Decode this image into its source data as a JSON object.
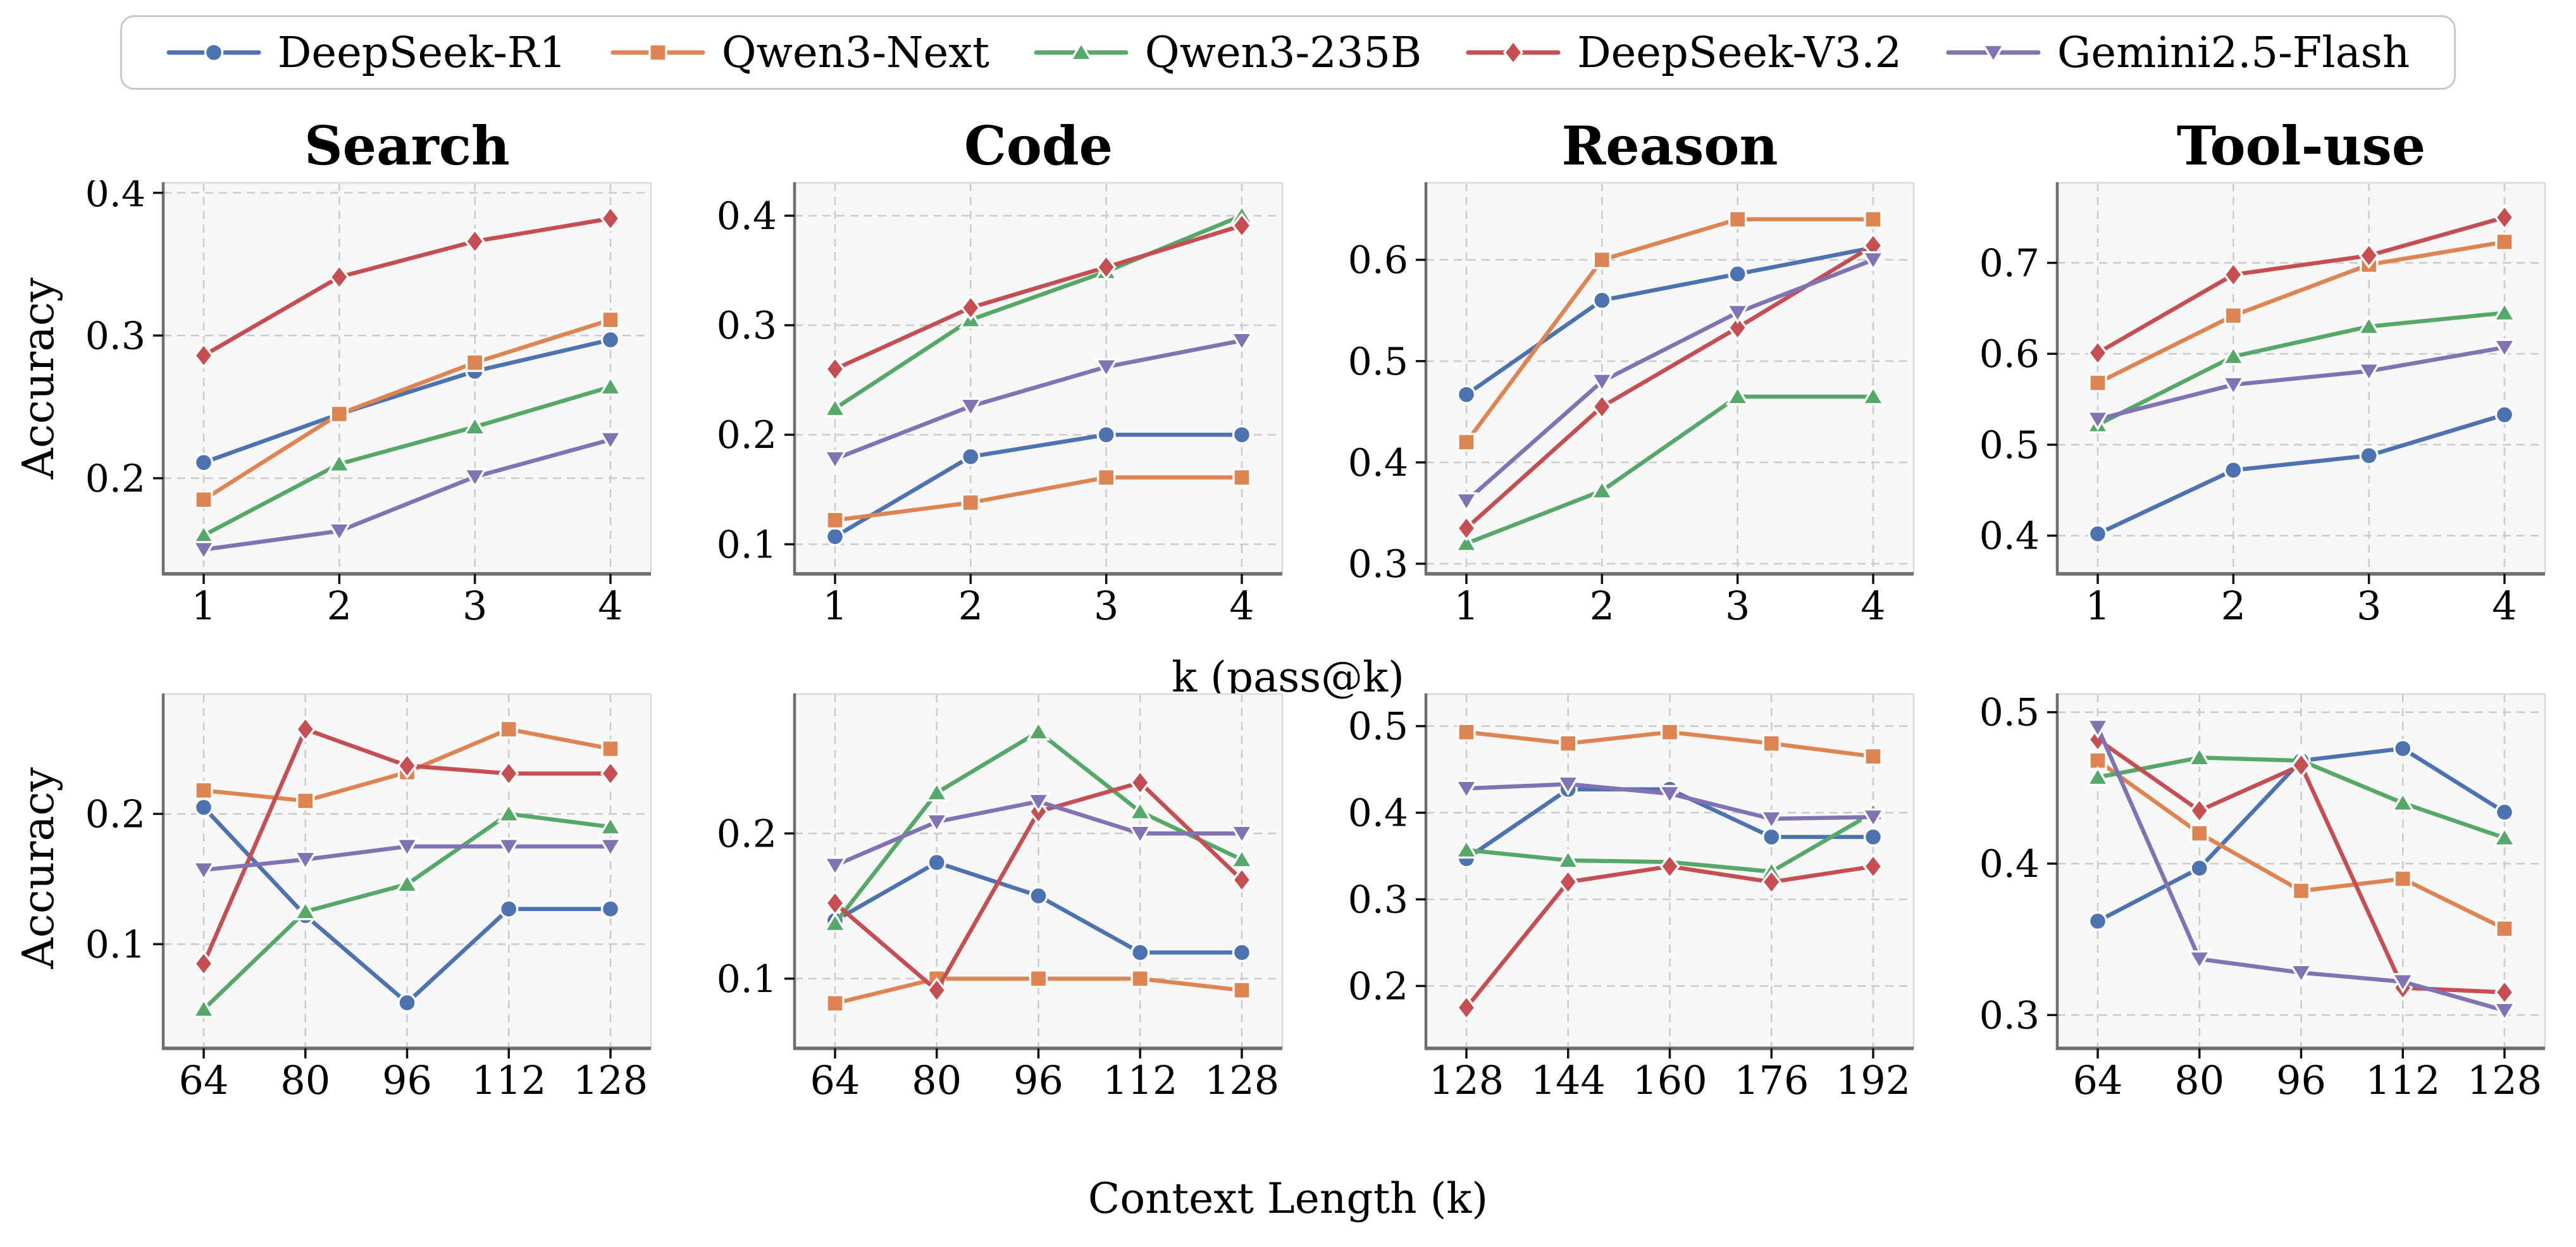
{
  "figure": {
    "background": "#ffffff",
    "plot_background": "#f7f7f7",
    "grid_color": "#cccccc",
    "spine_dark": "#6e6e6e",
    "spine_light": "#d9d9d9",
    "tick_color": "#111111"
  },
  "axis_labels": {
    "y": "Accuracy",
    "x_top": "k (pass@k)",
    "x_bottom": "Context Length (k)"
  },
  "models": [
    {
      "name": "DeepSeek-R1",
      "color": "#4C72B0",
      "marker": "circle"
    },
    {
      "name": "Qwen3-Next",
      "color": "#DD8452",
      "marker": "square"
    },
    {
      "name": "Qwen3-235B",
      "color": "#55A868",
      "marker": "triangle-up"
    },
    {
      "name": "DeepSeek-V3.2",
      "color": "#C44E52",
      "marker": "diamond"
    },
    {
      "name": "Gemini2.5-Flash",
      "color": "#8172B3",
      "marker": "triangle-down"
    }
  ],
  "chart_data": [
    {
      "type": "line",
      "title": "Search",
      "row": 0,
      "col": 0,
      "xlabel": "k (pass@k)",
      "ylabel": "Accuracy",
      "x": [
        1,
        2,
        3,
        4
      ],
      "x_tick_labels": [
        "1",
        "2",
        "3",
        "4"
      ],
      "ylim": [
        0.133,
        0.407
      ],
      "yticks": [
        0.2,
        0.3,
        0.4
      ],
      "grid": true,
      "series": [
        {
          "name": "DeepSeek-R1",
          "values": [
            0.211,
            0.245,
            0.275,
            0.297
          ]
        },
        {
          "name": "Qwen3-Next",
          "values": [
            0.185,
            0.245,
            0.281,
            0.311
          ]
        },
        {
          "name": "Qwen3-235B",
          "values": [
            0.16,
            0.21,
            0.236,
            0.264
          ]
        },
        {
          "name": "DeepSeek-V3.2",
          "values": [
            0.286,
            0.341,
            0.366,
            0.382
          ]
        },
        {
          "name": "Gemini2.5-Flash",
          "values": [
            0.15,
            0.163,
            0.201,
            0.227
          ]
        }
      ]
    },
    {
      "type": "line",
      "title": "Code",
      "row": 0,
      "col": 1,
      "xlabel": "k (pass@k)",
      "ylabel": "Accuracy",
      "x": [
        1,
        2,
        3,
        4
      ],
      "x_tick_labels": [
        "1",
        "2",
        "3",
        "4"
      ],
      "ylim": [
        0.073,
        0.43
      ],
      "yticks": [
        0.1,
        0.2,
        0.3,
        0.4
      ],
      "grid": true,
      "series": [
        {
          "name": "DeepSeek-R1",
          "values": [
            0.107,
            0.18,
            0.2,
            0.2
          ]
        },
        {
          "name": "Qwen3-Next",
          "values": [
            0.122,
            0.138,
            0.161,
            0.161
          ]
        },
        {
          "name": "Qwen3-235B",
          "values": [
            0.224,
            0.305,
            0.349,
            0.4
          ]
        },
        {
          "name": "DeepSeek-V3.2",
          "values": [
            0.26,
            0.316,
            0.353,
            0.391
          ]
        },
        {
          "name": "Gemini2.5-Flash",
          "values": [
            0.178,
            0.226,
            0.262,
            0.286
          ]
        }
      ]
    },
    {
      "type": "line",
      "title": "Reason",
      "row": 0,
      "col": 2,
      "xlabel": "k (pass@k)",
      "ylabel": "Accuracy",
      "x": [
        1,
        2,
        3,
        4
      ],
      "x_tick_labels": [
        "1",
        "2",
        "3",
        "4"
      ],
      "ylim": [
        0.29,
        0.676
      ],
      "yticks": [
        0.3,
        0.4,
        0.5,
        0.6
      ],
      "grid": true,
      "series": [
        {
          "name": "DeepSeek-R1",
          "values": [
            0.467,
            0.56,
            0.586,
            0.612
          ]
        },
        {
          "name": "Qwen3-Next",
          "values": [
            0.42,
            0.6,
            0.64,
            0.64
          ]
        },
        {
          "name": "Qwen3-235B",
          "values": [
            0.32,
            0.372,
            0.465,
            0.465
          ]
        },
        {
          "name": "DeepSeek-V3.2",
          "values": [
            0.335,
            0.455,
            0.533,
            0.614
          ]
        },
        {
          "name": "Gemini2.5-Flash",
          "values": [
            0.362,
            0.48,
            0.548,
            0.6
          ]
        }
      ]
    },
    {
      "type": "line",
      "title": "Tool-use",
      "row": 0,
      "col": 3,
      "xlabel": "k (pass@k)",
      "ylabel": "Accuracy",
      "x": [
        1,
        2,
        3,
        4
      ],
      "x_tick_labels": [
        "1",
        "2",
        "3",
        "4"
      ],
      "ylim": [
        0.358,
        0.788
      ],
      "yticks": [
        0.4,
        0.5,
        0.6,
        0.7
      ],
      "grid": true,
      "series": [
        {
          "name": "DeepSeek-R1",
          "values": [
            0.402,
            0.472,
            0.488,
            0.533
          ]
        },
        {
          "name": "Qwen3-Next",
          "values": [
            0.568,
            0.642,
            0.698,
            0.723
          ]
        },
        {
          "name": "Qwen3-235B",
          "values": [
            0.522,
            0.597,
            0.63,
            0.645
          ]
        },
        {
          "name": "DeepSeek-V3.2",
          "values": [
            0.601,
            0.687,
            0.708,
            0.75
          ]
        },
        {
          "name": "Gemini2.5-Flash",
          "values": [
            0.528,
            0.566,
            0.581,
            0.607
          ]
        }
      ]
    },
    {
      "type": "line",
      "title": "",
      "row": 1,
      "col": 0,
      "xlabel": "Context Length (k)",
      "ylabel": "Accuracy",
      "x": [
        64,
        80,
        96,
        112,
        128
      ],
      "x_tick_labels": [
        "64",
        "80",
        "96",
        "112",
        "128"
      ],
      "ylim": [
        0.02,
        0.292
      ],
      "yticks": [
        0.1,
        0.2
      ],
      "grid": true,
      "series": [
        {
          "name": "DeepSeek-R1",
          "values": [
            0.205,
            0.122,
            0.055,
            0.127,
            0.127
          ]
        },
        {
          "name": "Qwen3-Next",
          "values": [
            0.218,
            0.21,
            0.232,
            0.265,
            0.25
          ]
        },
        {
          "name": "Qwen3-235B",
          "values": [
            0.05,
            0.125,
            0.146,
            0.2,
            0.19
          ]
        },
        {
          "name": "DeepSeek-V3.2",
          "values": [
            0.085,
            0.265,
            0.237,
            0.231,
            0.231
          ]
        },
        {
          "name": "Gemini2.5-Flash",
          "values": [
            0.157,
            0.165,
            0.175,
            0.175,
            0.175
          ]
        }
      ]
    },
    {
      "type": "line",
      "title": "",
      "row": 1,
      "col": 1,
      "xlabel": "Context Length (k)",
      "ylabel": "Accuracy",
      "x": [
        64,
        80,
        96,
        112,
        128
      ],
      "x_tick_labels": [
        "64",
        "80",
        "96",
        "112",
        "128"
      ],
      "ylim": [
        0.052,
        0.296
      ],
      "yticks": [
        0.1,
        0.2
      ],
      "grid": true,
      "series": [
        {
          "name": "DeepSeek-R1",
          "values": [
            0.14,
            0.18,
            0.157,
            0.118,
            0.118
          ]
        },
        {
          "name": "Qwen3-Next",
          "values": [
            0.083,
            0.1,
            0.1,
            0.1,
            0.092
          ]
        },
        {
          "name": "Qwen3-235B",
          "values": [
            0.138,
            0.228,
            0.27,
            0.215,
            0.182
          ]
        },
        {
          "name": "DeepSeek-V3.2",
          "values": [
            0.152,
            0.092,
            0.215,
            0.235,
            0.168
          ]
        },
        {
          "name": "Gemini2.5-Flash",
          "values": [
            0.178,
            0.208,
            0.222,
            0.2,
            0.2
          ]
        }
      ]
    },
    {
      "type": "line",
      "title": "",
      "row": 1,
      "col": 2,
      "xlabel": "Context Length (k)",
      "ylabel": "Accuracy",
      "x": [
        128,
        144,
        160,
        176,
        192
      ],
      "x_tick_labels": [
        "128",
        "144",
        "160",
        "176",
        "192"
      ],
      "ylim": [
        0.128,
        0.537
      ],
      "yticks": [
        0.2,
        0.3,
        0.4,
        0.5
      ],
      "grid": true,
      "series": [
        {
          "name": "DeepSeek-R1",
          "values": [
            0.347,
            0.427,
            0.427,
            0.372,
            0.372
          ]
        },
        {
          "name": "Qwen3-Next",
          "values": [
            0.493,
            0.48,
            0.493,
            0.48,
            0.465
          ]
        },
        {
          "name": "Qwen3-235B",
          "values": [
            0.357,
            0.345,
            0.343,
            0.332,
            0.4
          ]
        },
        {
          "name": "DeepSeek-V3.2",
          "values": [
            0.175,
            0.32,
            0.338,
            0.32,
            0.338
          ]
        },
        {
          "name": "Gemini2.5-Flash",
          "values": [
            0.428,
            0.433,
            0.422,
            0.393,
            0.395
          ]
        }
      ]
    },
    {
      "type": "line",
      "title": "",
      "row": 1,
      "col": 3,
      "xlabel": "Context Length (k)",
      "ylabel": "Accuracy",
      "x": [
        64,
        80,
        96,
        112,
        128
      ],
      "x_tick_labels": [
        "64",
        "80",
        "96",
        "112",
        "128"
      ],
      "ylim": [
        0.278,
        0.512
      ],
      "yticks": [
        0.3,
        0.4,
        0.5
      ],
      "grid": true,
      "series": [
        {
          "name": "DeepSeek-R1",
          "values": [
            0.362,
            0.397,
            0.468,
            0.476,
            0.434
          ]
        },
        {
          "name": "Qwen3-Next",
          "values": [
            0.468,
            0.42,
            0.382,
            0.39,
            0.357
          ]
        },
        {
          "name": "Qwen3-235B",
          "values": [
            0.457,
            0.47,
            0.468,
            0.44,
            0.417
          ]
        },
        {
          "name": "DeepSeek-V3.2",
          "values": [
            0.482,
            0.435,
            0.465,
            0.318,
            0.315
          ]
        },
        {
          "name": "Gemini2.5-Flash",
          "values": [
            0.49,
            0.337,
            0.328,
            0.322,
            0.303
          ]
        }
      ]
    }
  ]
}
